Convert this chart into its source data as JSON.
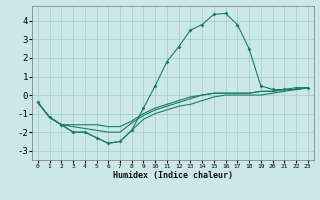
{
  "title": "",
  "xlabel": "Humidex (Indice chaleur)",
  "ylabel": "",
  "background_color": "#cce8e6",
  "grid_color": "#aacfcc",
  "line_color": "#1a7a6e",
  "xlim": [
    -0.5,
    23.5
  ],
  "ylim": [
    -3.5,
    4.8
  ],
  "xticks": [
    0,
    1,
    2,
    3,
    4,
    5,
    6,
    7,
    8,
    9,
    10,
    11,
    12,
    13,
    14,
    15,
    16,
    17,
    18,
    19,
    20,
    21,
    22,
    23
  ],
  "yticks": [
    -3,
    -2,
    -1,
    0,
    1,
    2,
    3,
    4
  ],
  "line1_x": [
    0,
    1,
    2,
    3,
    4,
    5,
    6,
    7,
    8,
    9,
    10,
    11,
    12,
    13,
    14,
    15,
    16,
    17,
    18,
    19,
    20,
    21,
    22,
    23
  ],
  "line1_y": [
    -0.4,
    -1.2,
    -1.6,
    -2.0,
    -2.0,
    -2.3,
    -2.6,
    -2.5,
    -1.9,
    -0.7,
    0.5,
    1.8,
    2.6,
    3.5,
    3.8,
    4.35,
    4.4,
    3.8,
    2.5,
    0.5,
    0.3,
    0.3,
    0.4,
    0.4
  ],
  "line2_x": [
    0,
    1,
    2,
    3,
    4,
    5,
    6,
    7,
    8,
    9,
    10,
    11,
    12,
    13,
    14,
    15,
    16,
    17,
    18,
    19,
    20,
    21,
    22,
    23
  ],
  "line2_y": [
    -0.4,
    -1.2,
    -1.6,
    -2.0,
    -2.0,
    -2.3,
    -2.6,
    -2.5,
    -1.9,
    -1.3,
    -1.0,
    -0.8,
    -0.6,
    -0.5,
    -0.3,
    -0.1,
    0.0,
    0.0,
    0.0,
    0.0,
    0.1,
    0.2,
    0.3,
    0.4
  ],
  "line3_x": [
    0,
    1,
    2,
    3,
    4,
    5,
    6,
    7,
    8,
    9,
    10,
    11,
    12,
    13,
    14,
    15,
    16,
    17,
    18,
    19,
    20,
    21,
    22,
    23
  ],
  "line3_y": [
    -0.4,
    -1.2,
    -1.6,
    -1.7,
    -1.8,
    -1.9,
    -2.0,
    -2.0,
    -1.5,
    -1.1,
    -0.8,
    -0.6,
    -0.4,
    -0.2,
    -0.0,
    0.1,
    0.1,
    0.1,
    0.1,
    0.2,
    0.2,
    0.3,
    0.3,
    0.4
  ],
  "line4_x": [
    0,
    1,
    2,
    3,
    4,
    5,
    6,
    7,
    8,
    9,
    10,
    11,
    12,
    13,
    14,
    15,
    16,
    17,
    18,
    19,
    20,
    21,
    22,
    23
  ],
  "line4_y": [
    -0.4,
    -1.2,
    -1.6,
    -1.6,
    -1.6,
    -1.6,
    -1.7,
    -1.7,
    -1.4,
    -1.0,
    -0.7,
    -0.5,
    -0.3,
    -0.1,
    0.0,
    0.1,
    0.1,
    0.1,
    0.1,
    0.2,
    0.2,
    0.3,
    0.3,
    0.4
  ]
}
